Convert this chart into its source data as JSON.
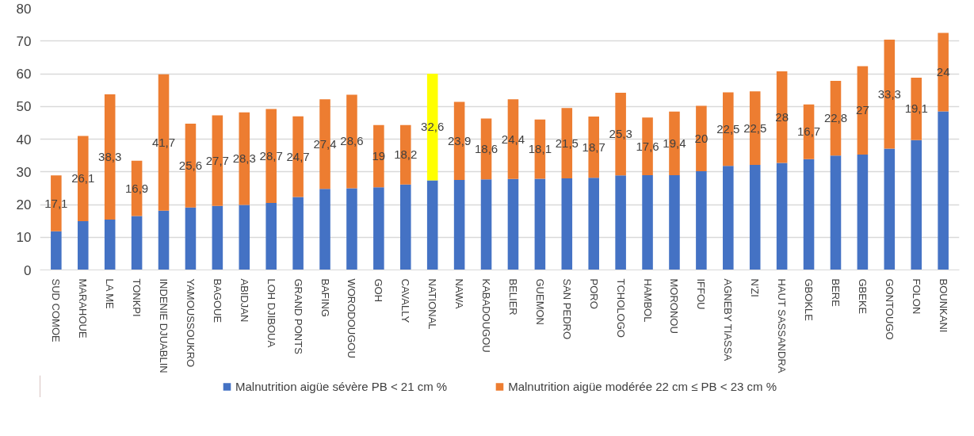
{
  "chart_data": {
    "type": "bar",
    "stacked": true,
    "categories": [
      "SUD COMOE",
      "MARAHOUE",
      "LA ME",
      "TONKPI",
      "INDENIE DJUABLIN",
      "YAMOUSSOUKRO",
      "BAGOUE",
      "ABIDJAN",
      "LOH DJIBOUA",
      "GRAND PONTS",
      "BAFING",
      "WORODOUGOU",
      "GOH",
      "CAVALLY",
      "NATIONAL",
      "NAWA",
      "KABADOUGOU",
      "BELIER",
      "GUEMON",
      "SAN PEDRO",
      "PORO",
      "TCHOLOGO",
      "HAMBOL",
      "MORONOU",
      "IFFOU",
      "AGNEBY TIASSA",
      "N'ZI",
      "HAUT SASSANDRA",
      "GBOKLE",
      "BERE",
      "GBEKE",
      "GONTOUGO",
      "FOLON",
      "BOUNKANI"
    ],
    "series": [
      {
        "name": "Malnutrition aigüe sévère PB < 21 cm %",
        "color": "#4472c4",
        "values": [
          11.8,
          14.9,
          15.4,
          16.5,
          18.1,
          19.1,
          19.6,
          19.9,
          20.5,
          22.3,
          24.8,
          25.0,
          25.3,
          26.1,
          27.4,
          27.5,
          27.7,
          27.8,
          27.9,
          28.0,
          28.2,
          28.9,
          29.0,
          29.0,
          30.2,
          31.8,
          32.1,
          32.7,
          33.9,
          35.0,
          35.3,
          37.1,
          39.7,
          48.5
        ]
      },
      {
        "name": "Malnutrition aigüe modérée 22 cm ≤ PB < 23 cm %",
        "color": "#ed7d31",
        "colors": [
          "#ed7d31",
          "#ed7d31",
          "#ed7d31",
          "#ed7d31",
          "#ed7d31",
          "#ed7d31",
          "#ed7d31",
          "#ed7d31",
          "#ed7d31",
          "#ed7d31",
          "#ed7d31",
          "#ed7d31",
          "#ed7d31",
          "#ed7d31",
          "#ffff00",
          "#ed7d31",
          "#ed7d31",
          "#ed7d31",
          "#ed7d31",
          "#ed7d31",
          "#ed7d31",
          "#ed7d31",
          "#ed7d31",
          "#ed7d31",
          "#ed7d31",
          "#ed7d31",
          "#ed7d31",
          "#ed7d31",
          "#ed7d31",
          "#ed7d31",
          "#ed7d31",
          "#ed7d31",
          "#ed7d31",
          "#ed7d31"
        ],
        "values": [
          17.1,
          26.1,
          38.3,
          16.9,
          41.7,
          25.6,
          27.7,
          28.3,
          28.7,
          24.7,
          27.4,
          28.6,
          19,
          18.2,
          32.6,
          23.9,
          18.6,
          24.4,
          18.1,
          21.5,
          18.7,
          25.3,
          17.6,
          19.4,
          20,
          22.5,
          22.5,
          28,
          16.7,
          22.8,
          27,
          33.3,
          19.1,
          24
        ],
        "value_labels": [
          "17,1",
          "26,1",
          "38,3",
          "16,9",
          "41,7",
          "25,6",
          "27,7",
          "28,3",
          "28,7",
          "24,7",
          "27,4",
          "28,6",
          "19",
          "18,2",
          "32,6",
          "23,9",
          "18,6",
          "24,4",
          "18,1",
          "21,5",
          "18,7",
          "25,3",
          "17,6",
          "19,4",
          "20",
          "22,5",
          "22,5",
          "28",
          "16,7",
          "22,8",
          "27",
          "33,3",
          "19,1",
          "24"
        ]
      }
    ],
    "ylim": [
      0,
      80
    ],
    "yticks": [
      0,
      10,
      20,
      30,
      40,
      50,
      60,
      70,
      80
    ],
    "grid": "y",
    "legend": "bottom"
  }
}
